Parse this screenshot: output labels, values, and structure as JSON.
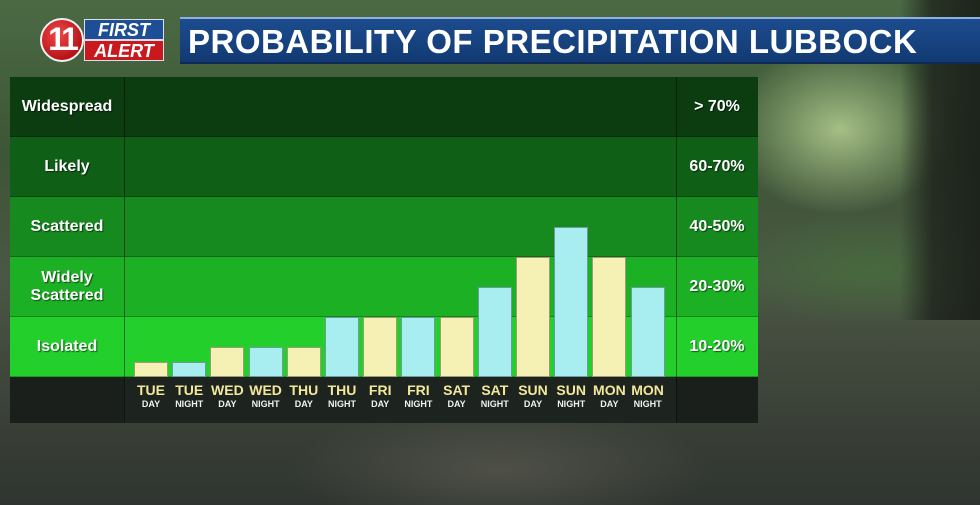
{
  "header": {
    "logo_number": "11",
    "logo_line1": "FIRST",
    "logo_line2": "ALERT",
    "title": "PROBABILITY OF PRECIPITATION LUBBOCK"
  },
  "colors": {
    "day_bar": "#f5f0b3",
    "night_bar": "#a8eef0",
    "band_widespread": "#0b3d11",
    "band_likely": "#0f5f16",
    "band_scattered": "#168a1e",
    "band_widely_scattered": "#1cb025",
    "band_isolated": "#22cf2b",
    "title_bar": "#17447f"
  },
  "chart_data": {
    "type": "bar",
    "title": "PROBABILITY OF PRECIPITATION LUBBOCK",
    "bands": [
      {
        "label": "Widespread",
        "range": "> 70%"
      },
      {
        "label": "Likely",
        "range": "60-70%"
      },
      {
        "label": "Scattered",
        "range": "40-50%"
      },
      {
        "label": "Widely Scattered",
        "range": "20-30%"
      },
      {
        "label": "Isolated",
        "range": "10-20%"
      }
    ],
    "ylim": [
      0,
      5
    ],
    "categories": [
      {
        "day": "TUE",
        "period": "DAY"
      },
      {
        "day": "TUE",
        "period": "NIGHT"
      },
      {
        "day": "WED",
        "period": "DAY"
      },
      {
        "day": "WED",
        "period": "NIGHT"
      },
      {
        "day": "THU",
        "period": "DAY"
      },
      {
        "day": "THU",
        "period": "NIGHT"
      },
      {
        "day": "FRI",
        "period": "DAY"
      },
      {
        "day": "FRI",
        "period": "NIGHT"
      },
      {
        "day": "SAT",
        "period": "DAY"
      },
      {
        "day": "SAT",
        "period": "NIGHT"
      },
      {
        "day": "SUN",
        "period": "DAY"
      },
      {
        "day": "SUN",
        "period": "NIGHT"
      },
      {
        "day": "MON",
        "period": "DAY"
      },
      {
        "day": "MON",
        "period": "NIGHT"
      }
    ],
    "values": [
      0.25,
      0.25,
      0.5,
      0.5,
      0.5,
      1.0,
      1.0,
      1.0,
      1.0,
      1.5,
      2.0,
      2.5,
      2.0,
      1.5
    ],
    "grid": true,
    "legend": "none"
  }
}
